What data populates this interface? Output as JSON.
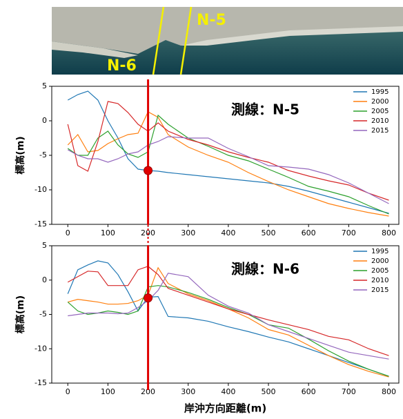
{
  "photo": {
    "labels": [
      "N-5",
      "N-6"
    ]
  },
  "chart_data": [
    {
      "type": "line",
      "annotation": "測線：N-5",
      "ylabel": "標高(m)",
      "x": [
        0,
        25,
        50,
        75,
        100,
        125,
        150,
        175,
        200,
        225,
        250,
        300,
        350,
        400,
        450,
        500,
        550,
        600,
        650,
        700,
        750,
        800
      ],
      "series": [
        {
          "name": "1995",
          "color": "#1f77b4",
          "values": [
            3,
            3.8,
            4.3,
            3,
            0,
            -2.5,
            -5.5,
            -7,
            -7.2,
            -7.3,
            -7.5,
            -7.8,
            -8.1,
            -8.4,
            -8.7,
            -9,
            -9.5,
            -10.2,
            -11,
            -11.8,
            -12.6,
            -13.4
          ]
        },
        {
          "name": "2000",
          "color": "#ff7f0e",
          "values": [
            -3.5,
            -2,
            -4.5,
            -4.3,
            -3.3,
            -2.6,
            -2,
            -1.8,
            1.3,
            0.5,
            -2,
            -3.8,
            -5,
            -6,
            -7.5,
            -8.8,
            -10,
            -11,
            -12,
            -12.7,
            -13.3,
            -13.8
          ]
        },
        {
          "name": "2005",
          "color": "#2ca02c",
          "values": [
            -4,
            -5,
            -5,
            -2.5,
            -1.5,
            -3.5,
            -4.8,
            -5.3,
            -4.5,
            0.8,
            -0.5,
            -2.5,
            -3.7,
            -5,
            -5.8,
            -7,
            -8.2,
            -9.5,
            -10.2,
            -11,
            -12.3,
            -13.5
          ]
        },
        {
          "name": "2010",
          "color": "#d62728",
          "values": [
            -0.5,
            -6.5,
            -7.3,
            -3,
            2.8,
            2.5,
            1.2,
            -0.5,
            -1.5,
            -0.3,
            -1.5,
            -2.7,
            -3.5,
            -4.5,
            -5.3,
            -6,
            -7.2,
            -8,
            -8.7,
            -9.3,
            -10.5,
            -11.5
          ]
        },
        {
          "name": "2015",
          "color": "#9467bd",
          "values": [
            -4.2,
            -5,
            -5.5,
            -5.5,
            -6,
            -5.5,
            -4.8,
            -4.5,
            -3.5,
            -3,
            -2.3,
            -2.5,
            -2.5,
            -4,
            -5.2,
            -6.5,
            -6.7,
            -7,
            -7.8,
            -9,
            -10.5,
            -12
          ]
        }
      ],
      "marker": {
        "x": 200,
        "y": -7.2,
        "color": "#e00000"
      },
      "xlim": [
        -40,
        825
      ],
      "ylim": [
        -15,
        5
      ],
      "xticks": [
        0,
        100,
        200,
        300,
        400,
        500,
        600,
        700,
        800
      ],
      "yticks": [
        -15,
        -10,
        -5,
        0,
        5
      ]
    },
    {
      "type": "line",
      "annotation": "測線：N-6",
      "ylabel": "標高(m)",
      "xlabel": "岸沖方向距離(m)",
      "x": [
        0,
        25,
        50,
        75,
        100,
        125,
        150,
        175,
        200,
        225,
        250,
        300,
        350,
        400,
        450,
        500,
        550,
        600,
        650,
        700,
        750,
        800
      ],
      "series": [
        {
          "name": "1995",
          "color": "#1f77b4",
          "values": [
            -2,
            1.5,
            2.2,
            2.8,
            2.5,
            0.8,
            -1.7,
            -4.5,
            -2.5,
            -2.4,
            -5.3,
            -5.5,
            -6,
            -6.8,
            -7.5,
            -8.3,
            -9,
            -10,
            -11,
            -12,
            -13,
            -14
          ]
        },
        {
          "name": "2000",
          "color": "#ff7f0e",
          "values": [
            -3.2,
            -2.8,
            -3,
            -3.2,
            -3.5,
            -3.5,
            -3.4,
            -3,
            -2.2,
            1.8,
            -0.5,
            -2,
            -3,
            -4.2,
            -5.5,
            -7.2,
            -8,
            -9.5,
            -11,
            -12.3,
            -13.3,
            -14.1
          ]
        },
        {
          "name": "2005",
          "color": "#2ca02c",
          "values": [
            -3.2,
            -4.5,
            -5,
            -4.8,
            -4.5,
            -4.7,
            -5,
            -4.5,
            -1,
            -0.8,
            -1,
            -1.8,
            -2.8,
            -4,
            -5,
            -6.5,
            -7,
            -8.6,
            -10.3,
            -11.8,
            -13,
            -14
          ]
        },
        {
          "name": "2010",
          "color": "#d62728",
          "values": [
            -0.3,
            0.5,
            1.3,
            1.2,
            -0.8,
            -0.8,
            -0.8,
            1.5,
            2,
            0.8,
            -1.2,
            -2.2,
            -3.2,
            -4.2,
            -5,
            -5.8,
            -6.5,
            -7.2,
            -8.2,
            -8.7,
            -10,
            -11
          ]
        },
        {
          "name": "2015",
          "color": "#9467bd",
          "values": [
            -5.2,
            -5,
            -4.8,
            -4.8,
            -4.8,
            -4.9,
            -4.8,
            -4,
            -3,
            -1.5,
            1,
            0.5,
            -2.2,
            -3.8,
            -4.8,
            -6.5,
            -7.5,
            -8.5,
            -9.5,
            -10.5,
            -11,
            -11.5
          ]
        }
      ],
      "marker": {
        "x": 200,
        "y": -2.6,
        "color": "#e00000"
      },
      "xlim": [
        -40,
        825
      ],
      "ylim": [
        -15,
        5
      ],
      "xticks": [
        0,
        100,
        200,
        300,
        400,
        500,
        600,
        700,
        800
      ],
      "yticks": [
        -15,
        -10,
        -5,
        0,
        5
      ]
    }
  ]
}
